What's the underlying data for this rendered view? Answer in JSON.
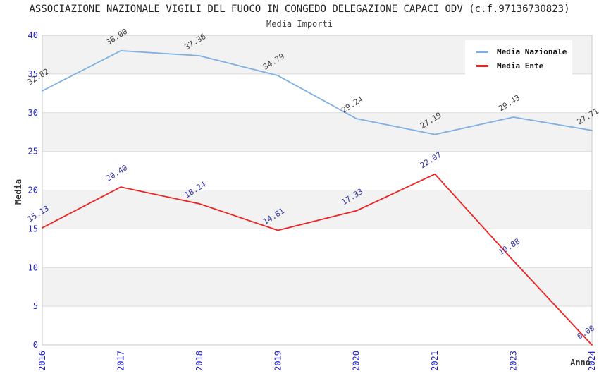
{
  "title": "ASSOCIAZIONE NAZIONALE VIGILI DEL FUOCO IN CONGEDO DELEGAZIONE CAPACI ODV (c.f.97136730823)",
  "subtitle": "Media Importi",
  "colors": {
    "nazionale_line": "#7EB0E2",
    "ente_line": "#EE2222",
    "tick_label": "#2222CC",
    "nazionale_data_label": "#404040",
    "ente_data_label": "#3333AA",
    "band_gray": "#F2F2F2",
    "grid_line": "#DCDCDC",
    "plot_border": "#C9C9C9",
    "axis_title": "#333333",
    "legend_text": "#111111"
  },
  "chart_data": {
    "type": "line",
    "title": "ASSOCIAZIONE NAZIONALE VIGILI DEL FUOCO IN CONGEDO DELEGAZIONE CAPACI ODV (c.f.97136730823)",
    "subtitle": "Media Importi",
    "xlabel": "Anno",
    "ylabel": "Media",
    "categories": [
      "2016",
      "2017",
      "2018",
      "2019",
      "2020",
      "2021",
      "2023",
      "2024"
    ],
    "series": [
      {
        "name": "Media Nazionale",
        "color": "#7EB0E2",
        "label_color": "#404040",
        "values": [
          32.82,
          38.0,
          37.36,
          34.79,
          29.24,
          27.19,
          29.43,
          27.71
        ]
      },
      {
        "name": "Media Ente",
        "color": "#EE2222",
        "label_color": "#3333AA",
        "values": [
          15.13,
          20.4,
          18.24,
          14.81,
          17.33,
          22.07,
          10.88,
          0.0
        ]
      }
    ],
    "ylim": [
      0,
      40
    ],
    "yticks": [
      0,
      5,
      10,
      15,
      20,
      25,
      30,
      35,
      40
    ],
    "grid": true,
    "banded_background": true,
    "legend_position": "top-right",
    "data_label_format": "2-decimals",
    "x_tick_rotation": -90,
    "data_label_rotation": -32
  },
  "legend": {
    "items": [
      {
        "label": "Media Nazionale"
      },
      {
        "label": "Media Ente"
      }
    ]
  }
}
